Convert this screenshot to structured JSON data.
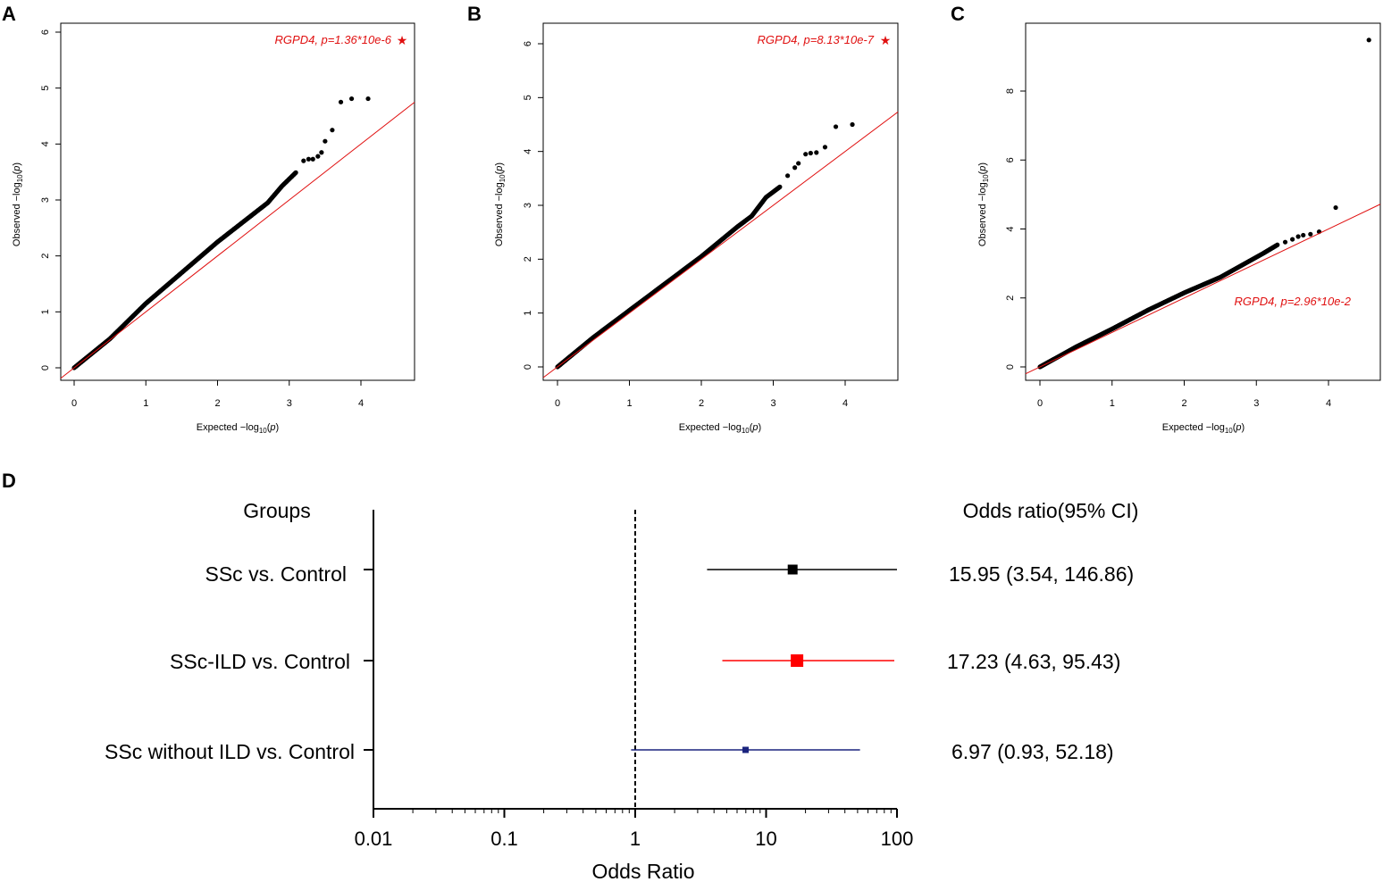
{
  "panels": {
    "A": {
      "letter": "A",
      "xlabel_pre": "Expected  −log",
      "ylabel_pre": "Observed  −log",
      "sub": "10",
      "p_open": "(",
      "p_var": "p",
      "p_close": ")",
      "annotation": "RGPD4, p=1.36*10e-6",
      "star": "★"
    },
    "B": {
      "letter": "B",
      "xlabel_pre": "Expected  −log",
      "ylabel_pre": "Observed  −log",
      "sub": "10",
      "p_open": "(",
      "p_var": "p",
      "p_close": ")",
      "annotation": "RGPD4, p=8.13*10e-7",
      "star": "★"
    },
    "C": {
      "letter": "C",
      "xlabel_pre": "Expected  −log",
      "ylabel_pre": "Observed  −log",
      "sub": "10",
      "p_open": "(",
      "p_var": "p",
      "p_close": ")",
      "annotation": "RGPD4, p=2.96*10e-2"
    },
    "D": {
      "letter": "D",
      "groups_header": "Groups",
      "or_header": "Odds ratio(95% CI)",
      "xlabel": "Odds Ratio",
      "rows": [
        {
          "label": "SSc vs. Control",
          "or_text": "15.95 (3.54, 146.86)"
        },
        {
          "label": "SSc-ILD vs. Control",
          "or_text": "17.23 (4.63, 95.43)"
        },
        {
          "label": "SSc without ILD vs. Control",
          "or_text": "6.97 (0.93, 52.18)"
        }
      ]
    }
  },
  "chart_data": [
    {
      "id": "A",
      "type": "scatter",
      "title": "",
      "xlabel": "Expected −log10(p)",
      "ylabel": "Observed −log10(p)",
      "xlim": [
        0,
        4.6
      ],
      "ylim": [
        0,
        6
      ],
      "xticks": [
        0,
        1,
        2,
        3,
        4
      ],
      "yticks": [
        0,
        1,
        2,
        3,
        4,
        5,
        6
      ],
      "curve": [
        [
          0,
          0
        ],
        [
          0.5,
          0.52
        ],
        [
          1,
          1.15
        ],
        [
          1.5,
          1.7
        ],
        [
          2,
          2.25
        ],
        [
          2.5,
          2.75
        ],
        [
          2.7,
          2.95
        ],
        [
          2.9,
          3.25
        ],
        [
          3.1,
          3.5
        ]
      ],
      "tail": [
        [
          3.2,
          3.7
        ],
        [
          3.27,
          3.73
        ],
        [
          3.33,
          3.73
        ],
        [
          3.4,
          3.78
        ],
        [
          3.45,
          3.85
        ],
        [
          3.5,
          4.05
        ],
        [
          3.6,
          4.25
        ],
        [
          3.72,
          4.75
        ],
        [
          3.87,
          4.81
        ],
        [
          4.1,
          4.81
        ]
      ],
      "ref_line": {
        "slope": 1,
        "intercept": 0
      },
      "annotation": "RGPD4, p=1.36*10e-6",
      "colors": {
        "points": "#000000",
        "line": "#e01010"
      }
    },
    {
      "id": "B",
      "type": "scatter",
      "title": "",
      "xlabel": "Expected −log10(p)",
      "ylabel": "Observed −log10(p)",
      "xlim": [
        0,
        4.6
      ],
      "ylim": [
        0,
        6
      ],
      "xticks": [
        0,
        1,
        2,
        3,
        4
      ],
      "yticks": [
        0,
        1,
        2,
        3,
        4,
        5,
        6
      ],
      "curve": [
        [
          0,
          0
        ],
        [
          0.5,
          0.55
        ],
        [
          1,
          1.05
        ],
        [
          1.5,
          1.55
        ],
        [
          2,
          2.05
        ],
        [
          2.5,
          2.6
        ],
        [
          2.7,
          2.8
        ],
        [
          2.9,
          3.15
        ],
        [
          3.1,
          3.35
        ]
      ],
      "tail": [
        [
          3.2,
          3.55
        ],
        [
          3.3,
          3.7
        ],
        [
          3.35,
          3.78
        ],
        [
          3.45,
          3.95
        ],
        [
          3.52,
          3.97
        ],
        [
          3.6,
          3.98
        ],
        [
          3.72,
          4.08
        ],
        [
          3.87,
          4.46
        ],
        [
          4.1,
          4.5
        ]
      ],
      "ref_line": {
        "slope": 1,
        "intercept": 0
      },
      "annotation": "RGPD4, p=8.13*10e-7",
      "colors": {
        "points": "#000000",
        "line": "#e01010"
      }
    },
    {
      "id": "C",
      "type": "scatter",
      "title": "",
      "xlabel": "Expected −log10(p)",
      "ylabel": "Observed −log10(p)",
      "xlim": [
        0,
        4.6
      ],
      "ylim": [
        0,
        9.5
      ],
      "xticks": [
        0,
        1,
        2,
        3,
        4
      ],
      "yticks": [
        0,
        2,
        4,
        6,
        8
      ],
      "curve": [
        [
          0,
          0
        ],
        [
          0.5,
          0.58
        ],
        [
          1,
          1.1
        ],
        [
          1.5,
          1.65
        ],
        [
          2,
          2.15
        ],
        [
          2.5,
          2.6
        ],
        [
          2.8,
          2.95
        ],
        [
          3.1,
          3.3
        ],
        [
          3.3,
          3.55
        ]
      ],
      "tail": [
        [
          3.4,
          3.62
        ],
        [
          3.5,
          3.7
        ],
        [
          3.58,
          3.78
        ],
        [
          3.65,
          3.82
        ],
        [
          3.75,
          3.85
        ],
        [
          3.87,
          3.92
        ],
        [
          4.1,
          4.62
        ],
        [
          4.56,
          9.48
        ]
      ],
      "ref_line": {
        "slope": 1,
        "intercept": 0
      },
      "annotation": "RGPD4, p=2.96*10e-2",
      "colors": {
        "points": "#000000",
        "line": "#e01010"
      }
    },
    {
      "id": "D",
      "type": "forest",
      "title": "",
      "xlabel": "Odds Ratio",
      "xscale": "log",
      "xlim": [
        0.01,
        100
      ],
      "xticks": [
        "0.01",
        "0.1",
        "1",
        "10",
        "100"
      ],
      "reference_line": 1,
      "series": [
        {
          "name": "SSc vs. Control",
          "or": 15.95,
          "lower": 3.54,
          "upper": 146.86,
          "color": "#000000"
        },
        {
          "name": "SSc-ILD vs. Control",
          "or": 17.23,
          "lower": 4.63,
          "upper": 95.43,
          "color": "#ff0000"
        },
        {
          "name": "SSc without ILD vs. Control",
          "or": 6.97,
          "lower": 0.93,
          "upper": 52.18,
          "color": "#1a237e"
        }
      ]
    }
  ]
}
